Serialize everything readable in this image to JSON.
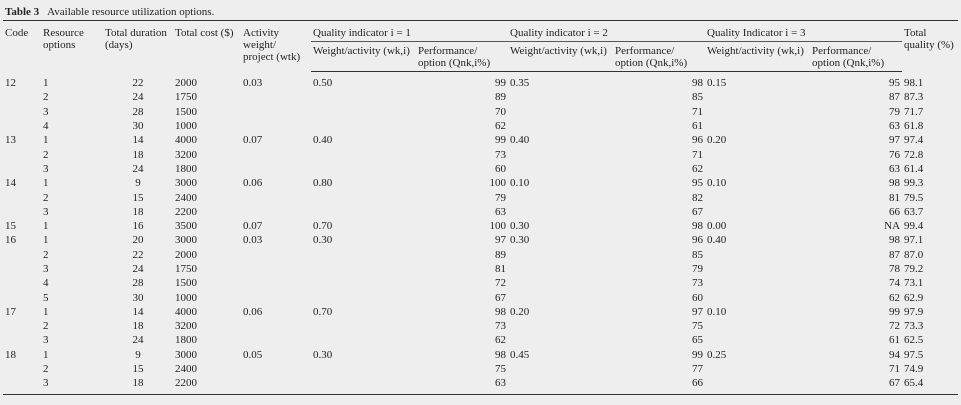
{
  "caption": {
    "label": "Table 3",
    "title": "Available resource utilization options."
  },
  "header": {
    "columns": [
      "Code",
      "Resource options",
      "Total duration (days)",
      "Total cost ($)",
      "Activity weight/ project (wtk)",
      "Quality indicator i = 1",
      "Quality indicator i = 2",
      "Quality Indicator i = 3",
      "Total quality (%)"
    ],
    "subcolumns": [
      "Weight/activity (wk,i)",
      "Performance/ option (Qnk,i%)",
      "Weight/activity (wk,i)",
      "Performance/ option (Qnk,i%)",
      "Weight/activity (wk,i)",
      "Performance/ option (Qnk,i%)"
    ]
  },
  "table": {
    "rows": [
      [
        "12",
        "1",
        "22",
        "2000",
        "0.03",
        "0.50",
        "99",
        "0.35",
        "98",
        "0.15",
        "95",
        "98.1"
      ],
      [
        null,
        "2",
        "24",
        "1750",
        null,
        null,
        "89",
        null,
        "85",
        null,
        "87",
        "87.3"
      ],
      [
        null,
        "3",
        "28",
        "1500",
        null,
        null,
        "70",
        null,
        "71",
        null,
        "79",
        "71.7"
      ],
      [
        null,
        "4",
        "30",
        "1000",
        null,
        null,
        "62",
        null,
        "61",
        null,
        "63",
        "61.8"
      ],
      [
        "13",
        "1",
        "14",
        "4000",
        "0.07",
        "0.40",
        "99",
        "0.40",
        "96",
        "0.20",
        "97",
        "97.4"
      ],
      [
        null,
        "2",
        "18",
        "3200",
        null,
        null,
        "73",
        null,
        "71",
        null,
        "76",
        "72.8"
      ],
      [
        null,
        "3",
        "24",
        "1800",
        null,
        null,
        "60",
        null,
        "62",
        null,
        "63",
        "61.4"
      ],
      [
        "14",
        "1",
        "9",
        "3000",
        "0.06",
        "0.80",
        "100",
        "0.10",
        "95",
        "0.10",
        "98",
        "99.3"
      ],
      [
        null,
        "2",
        "15",
        "2400",
        null,
        null,
        "79",
        null,
        "82",
        null,
        "81",
        "79.5"
      ],
      [
        null,
        "3",
        "18",
        "2200",
        null,
        null,
        "63",
        null,
        "67",
        null,
        "66",
        "63.7"
      ],
      [
        "15",
        "1",
        "16",
        "3500",
        "0.07",
        "0.70",
        "100",
        "0.30",
        "98",
        "0.00",
        "NA",
        "99.4"
      ],
      [
        "16",
        "1",
        "20",
        "3000",
        "0.03",
        "0.30",
        "97",
        "0.30",
        "96",
        "0.40",
        "98",
        "97.1"
      ],
      [
        null,
        "2",
        "22",
        "2000",
        null,
        null,
        "89",
        null,
        "85",
        null,
        "87",
        "87.0"
      ],
      [
        null,
        "3",
        "24",
        "1750",
        null,
        null,
        "81",
        null,
        "79",
        null,
        "78",
        "79.2"
      ],
      [
        null,
        "4",
        "28",
        "1500",
        null,
        null,
        "72",
        null,
        "73",
        null,
        "74",
        "73.1"
      ],
      [
        null,
        "5",
        "30",
        "1000",
        null,
        null,
        "67",
        null,
        "60",
        null,
        "62",
        "62.9"
      ],
      [
        "17",
        "1",
        "14",
        "4000",
        "0.06",
        "0.70",
        "98",
        "0.20",
        "97",
        "0.10",
        "99",
        "97.9"
      ],
      [
        null,
        "2",
        "18",
        "3200",
        null,
        null,
        "73",
        null,
        "75",
        null,
        "72",
        "73.3"
      ],
      [
        null,
        "3",
        "24",
        "1800",
        null,
        null,
        "62",
        null,
        "65",
        null,
        "61",
        "62.5"
      ],
      [
        "18",
        "1",
        "9",
        "3000",
        "0.05",
        "0.30",
        "98",
        "0.45",
        "99",
        "0.25",
        "94",
        "97.5"
      ],
      [
        null,
        "2",
        "15",
        "2400",
        null,
        null,
        "75",
        null,
        "77",
        null,
        "71",
        "74.9"
      ],
      [
        null,
        "3",
        "18",
        "2200",
        null,
        null,
        "63",
        null,
        "66",
        null,
        "67",
        "65.4"
      ]
    ]
  }
}
